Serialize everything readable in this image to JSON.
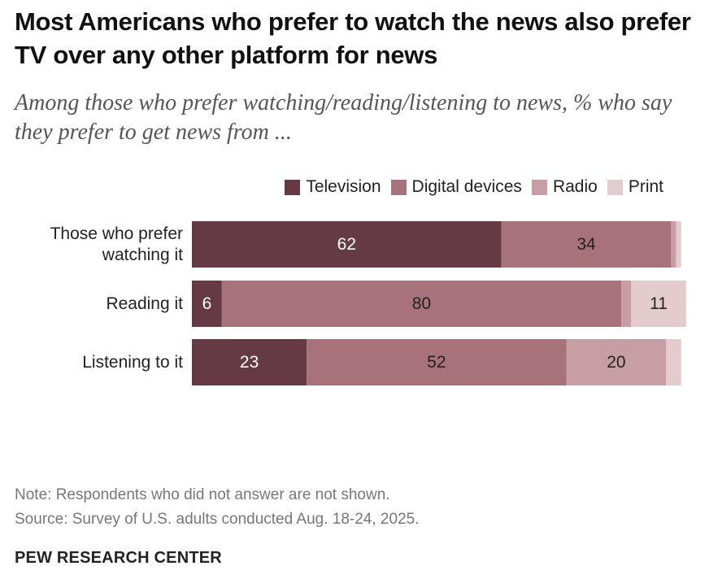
{
  "header": {
    "title": "Most Americans who prefer to watch the news also prefer TV over any other platform for news",
    "subtitle": "Among those who prefer watching/reading/listening to news, % who say they prefer to get news from ..."
  },
  "legend": {
    "items": [
      {
        "label": "Television",
        "color": "#663A45"
      },
      {
        "label": "Digital devices",
        "color": "#A8727A"
      },
      {
        "label": "Radio",
        "color": "#C79EA4"
      },
      {
        "label": "Print",
        "color": "#E4CBCE"
      }
    ]
  },
  "chart_data": {
    "type": "bar",
    "orientation": "horizontal",
    "stacked": true,
    "categories": [
      "Those who prefer watching it",
      "Reading it",
      "Listening to it"
    ],
    "category_lines": [
      [
        "Those who prefer",
        "watching it"
      ],
      [
        "Reading it"
      ],
      [
        "Listening to it"
      ]
    ],
    "series": [
      {
        "name": "Television",
        "color": "#663A45",
        "label_color": "#ffffff",
        "values": [
          62,
          6,
          23
        ],
        "labels": [
          "62",
          "6",
          "23"
        ]
      },
      {
        "name": "Digital devices",
        "color": "#A8727A",
        "label_color": "#222222",
        "values": [
          34,
          80,
          52
        ],
        "labels": [
          "34",
          "80",
          "52"
        ]
      },
      {
        "name": "Radio",
        "color": "#C79EA4",
        "label_color": "#222222",
        "values": [
          1,
          2,
          20
        ],
        "labels": [
          "",
          "",
          "20"
        ]
      },
      {
        "name": "Print",
        "color": "#E4CBCE",
        "label_color": "#222222",
        "values": [
          1,
          11,
          3
        ],
        "labels": [
          "",
          "11",
          ""
        ]
      }
    ],
    "xlim": [
      0,
      100
    ],
    "legend_position": "top-right",
    "grid": false
  },
  "footer": {
    "note": "Note: Respondents who did not answer are not shown.",
    "source": "Source: Survey of U.S. adults conducted Aug. 18-24, 2025.",
    "brand": "PEW RESEARCH CENTER"
  }
}
